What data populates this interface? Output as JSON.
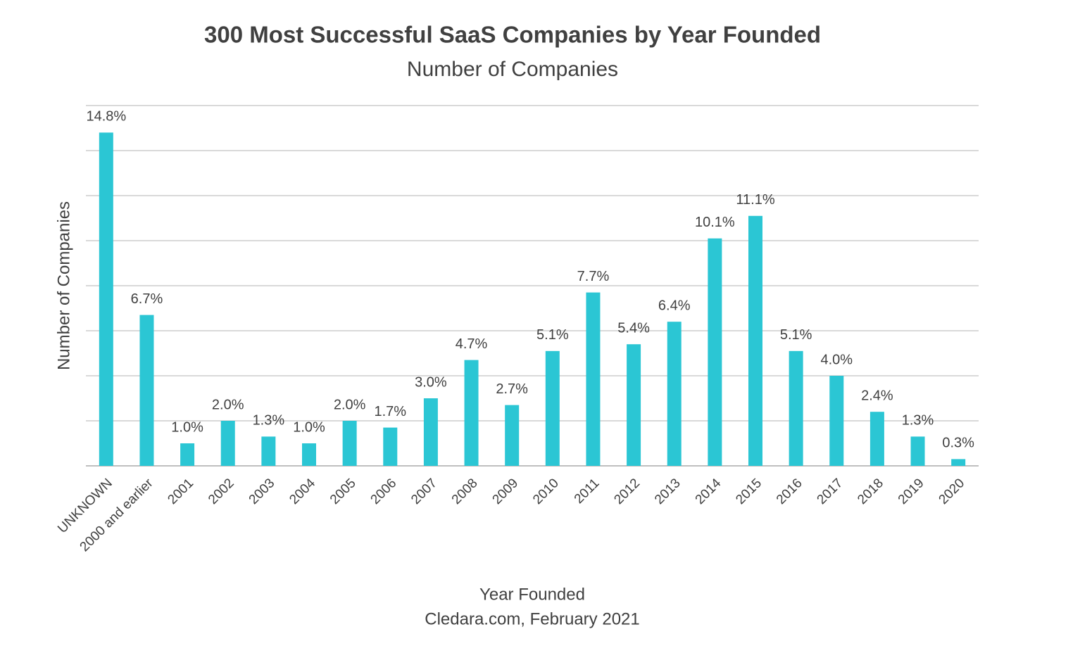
{
  "chart_data": {
    "type": "bar",
    "title": "300 Most Successful SaaS Companies by Year Founded",
    "subtitle": "Number of Companies",
    "y_label": "Number of Companies",
    "x_label": "Year Founded",
    "source": "Cledara.com, February 2021",
    "categories": [
      "UNKNOWN",
      "2000 and earlier",
      "2001",
      "2002",
      "2003",
      "2004",
      "2005",
      "2006",
      "2007",
      "2008",
      "2009",
      "2010",
      "2011",
      "2012",
      "2013",
      "2014",
      "2015",
      "2016",
      "2017",
      "2018",
      "2019",
      "2020"
    ],
    "values": [
      14.8,
      6.7,
      1.0,
      2.0,
      1.3,
      1.0,
      2.0,
      1.7,
      3.0,
      4.7,
      2.7,
      5.1,
      7.7,
      5.4,
      6.4,
      10.1,
      11.1,
      5.1,
      4.0,
      2.4,
      1.3,
      0.3
    ],
    "value_labels": [
      "14.8%",
      "6.7%",
      "1.0%",
      "2.0%",
      "1.3%",
      "1.0%",
      "2.0%",
      "1.7%",
      "3.0%",
      "4.7%",
      "2.7%",
      "5.1%",
      "7.7%",
      "5.4%",
      "6.4%",
      "10.1%",
      "11.1%",
      "5.1%",
      "4.0%",
      "2.4%",
      "1.3%",
      "0.3%"
    ],
    "color": "#2bc6d4",
    "ylim": [
      0,
      16
    ],
    "yticks": [
      0,
      2,
      4,
      6,
      8,
      10,
      12,
      14,
      16
    ],
    "ytick_labels": false,
    "grid": true
  }
}
